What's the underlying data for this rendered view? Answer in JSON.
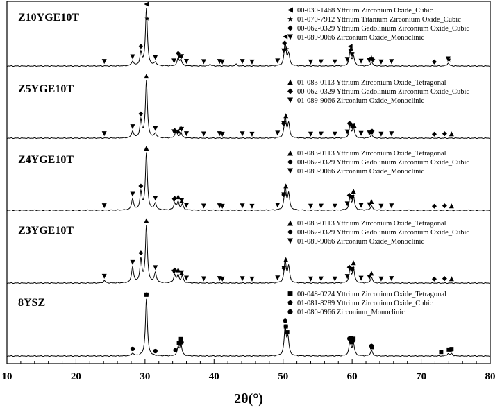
{
  "chart_data": {
    "type": "line",
    "xlabel": "2θ(°)",
    "xlim": [
      10,
      80
    ],
    "x_ticks": [
      "10",
      "20",
      "30",
      "40",
      "50",
      "60",
      "70",
      "80"
    ],
    "panels": [
      {
        "name": "Z10YGE10T",
        "legend": [
          {
            "marker": "triangle-left",
            "text": "00-030-1468 Yttrium Zirconium Oxide_Cubic"
          },
          {
            "marker": "star",
            "text": "01-070-7912 Yttrium Titanium Zirconium Oxide_Cubic"
          },
          {
            "marker": "diamond",
            "text": "00-062-0329 Yttrium Gadolinium Zirconium Oxide_Cubic"
          },
          {
            "marker": "triangle-down",
            "text": "01-089-9066 Zirconium Oxide_Monoclinic"
          }
        ],
        "peaks": [
          [
            28.2,
            0.08
          ],
          [
            29.4,
            0.22
          ],
          [
            30.2,
            1.0
          ],
          [
            31.5,
            0.06
          ],
          [
            34.8,
            0.13
          ],
          [
            35.2,
            0.1
          ],
          [
            39.4,
            0.03
          ],
          [
            43.2,
            0.03
          ],
          [
            50.3,
            0.42
          ],
          [
            50.8,
            0.2
          ],
          [
            59.7,
            0.25
          ],
          [
            60.2,
            0.16
          ],
          [
            62.8,
            0.07
          ],
          [
            73.9,
            0.05
          ]
        ],
        "markers": [
          {
            "m": "triangle-left",
            "x": [
              30.2,
              50.3,
              59.7
            ]
          },
          {
            "m": "star",
            "x": [
              30.3,
              35.0,
              50.5,
              60.0,
              62.8,
              74.0
            ]
          },
          {
            "m": "diamond",
            "x": [
              29.4,
              34.8,
              50.2,
              59.8,
              63.0,
              71.9
            ]
          },
          {
            "m": "triangle-down",
            "x": [
              24.1,
              28.2,
              31.5,
              34.2,
              35.3,
              36.0,
              38.5,
              40.8,
              41.2,
              44.1,
              45.5,
              49.2,
              50.1,
              54.0,
              55.5,
              57.5,
              59.3,
              60.0,
              61.3,
              62.5,
              64.2,
              65.7,
              73.9
            ]
          }
        ]
      },
      {
        "name": "Z5YGE10T",
        "legend": [
          {
            "marker": "triangle-up",
            "text": "01-083-0113 Yttrium Zirconium Oxide_Tetragonal"
          },
          {
            "marker": "diamond",
            "text": "00-062-0329 Yttrium Gadolinium Zirconium Oxide_Cubic"
          },
          {
            "marker": "triangle-down",
            "text": "01-089-9066 Zirconium Oxide_Monoclinic"
          }
        ],
        "peaks": [
          [
            28.2,
            0.12
          ],
          [
            29.4,
            0.3
          ],
          [
            30.2,
            1.0
          ],
          [
            31.5,
            0.08
          ],
          [
            34.5,
            0.14
          ],
          [
            35.2,
            0.1
          ],
          [
            50.3,
            0.38
          ],
          [
            50.8,
            0.25
          ],
          [
            59.7,
            0.22
          ],
          [
            60.2,
            0.18
          ],
          [
            62.8,
            0.06
          ]
        ],
        "markers": [
          {
            "m": "triangle-up",
            "x": [
              30.2,
              34.8,
              35.2,
              50.4,
              59.8,
              60.3,
              62.7,
              74.4
            ]
          },
          {
            "m": "diamond",
            "x": [
              29.4,
              34.3,
              50.1,
              59.6,
              62.9,
              71.9,
              73.4
            ]
          },
          {
            "m": "triangle-down",
            "x": [
              24.1,
              28.2,
              31.5,
              34.2,
              35.3,
              36.0,
              38.5,
              40.8,
              41.2,
              44.1,
              45.5,
              49.2,
              50.1,
              54.0,
              55.5,
              57.5,
              59.3,
              60.0,
              61.3,
              62.5,
              64.2,
              65.7
            ]
          }
        ]
      },
      {
        "name": "Z4YGE10T",
        "legend": [
          {
            "marker": "triangle-up",
            "text": "01-083-0113 Yttrium Zirconium Oxide_Tetragonal"
          },
          {
            "marker": "diamond",
            "text": "00-062-0329 Yttrium Gadolinium Zirconium Oxide_Cubic"
          },
          {
            "marker": "triangle-down",
            "text": "01-089-9066 Zirconium Oxide_Monoclinic"
          }
        ],
        "peaks": [
          [
            28.2,
            0.2
          ],
          [
            29.4,
            0.3
          ],
          [
            30.2,
            1.0
          ],
          [
            31.5,
            0.12
          ],
          [
            34.3,
            0.12
          ],
          [
            34.8,
            0.14
          ],
          [
            35.4,
            0.1
          ],
          [
            50.3,
            0.42
          ],
          [
            50.8,
            0.28
          ],
          [
            59.7,
            0.22
          ],
          [
            60.2,
            0.24
          ],
          [
            62.8,
            0.08
          ]
        ],
        "markers": [
          {
            "m": "triangle-up",
            "x": [
              30.2,
              34.8,
              35.3,
              50.4,
              60.2,
              62.8,
              74.4
            ]
          },
          {
            "m": "diamond",
            "x": [
              29.4,
              34.3,
              50.1,
              59.6,
              60.0,
              71.9,
              73.4
            ]
          },
          {
            "m": "triangle-down",
            "x": [
              24.1,
              28.2,
              31.5,
              34.2,
              35.3,
              36.0,
              38.5,
              40.8,
              41.2,
              44.1,
              45.5,
              49.2,
              50.1,
              54.0,
              55.5,
              57.5,
              59.3,
              60.0,
              61.3,
              62.5,
              64.2,
              65.7
            ]
          }
        ]
      },
      {
        "name": "Z3YGE10T",
        "legend": [
          {
            "marker": "triangle-up",
            "text": "01-083-0113 Yttrium Zirconium Oxide_Tetragonal"
          },
          {
            "marker": "diamond",
            "text": "00-062-0329 Yttrium Gadolinium Zirconium Oxide_Cubic"
          },
          {
            "marker": "triangle-down",
            "text": "01-089-9066 Zirconium Oxide_Monoclinic"
          }
        ],
        "peaks": [
          [
            24.1,
            0.04
          ],
          [
            28.2,
            0.28
          ],
          [
            29.4,
            0.4
          ],
          [
            30.2,
            1.0
          ],
          [
            31.5,
            0.18
          ],
          [
            34.3,
            0.14
          ],
          [
            34.8,
            0.13
          ],
          [
            35.4,
            0.12
          ],
          [
            50.3,
            0.4
          ],
          [
            50.8,
            0.28
          ],
          [
            59.7,
            0.24
          ],
          [
            60.2,
            0.26
          ],
          [
            62.8,
            0.1
          ]
        ],
        "markers": [
          {
            "m": "triangle-up",
            "x": [
              30.2,
              34.8,
              35.3,
              50.4,
              60.2,
              62.8,
              74.4
            ]
          },
          {
            "m": "diamond",
            "x": [
              29.4,
              34.3,
              50.1,
              59.6,
              60.0,
              71.9,
              73.4
            ]
          },
          {
            "m": "triangle-down",
            "x": [
              24.1,
              28.2,
              31.5,
              34.2,
              35.3,
              36.0,
              38.5,
              40.8,
              41.2,
              44.1,
              45.5,
              49.2,
              50.1,
              54.0,
              55.5,
              57.5,
              59.3,
              60.0,
              61.3,
              62.5,
              64.2,
              65.7
            ]
          }
        ]
      },
      {
        "name": "8YSZ",
        "legend": [
          {
            "marker": "square",
            "text": "00-048-0224 Yttrium Zirconium Oxide_Tetragonal"
          },
          {
            "marker": "pentagon",
            "text": "01-081-8289 Yttrium Zirconium Oxide_Cubic"
          },
          {
            "marker": "circle",
            "text": "01-080-0966 Zirconium_Monoclinic"
          }
        ],
        "peaks": [
          [
            28.2,
            0.05
          ],
          [
            30.2,
            1.0
          ],
          [
            34.8,
            0.14
          ],
          [
            35.2,
            0.2
          ],
          [
            50.3,
            0.5
          ],
          [
            50.7,
            0.3
          ],
          [
            59.7,
            0.28
          ],
          [
            60.2,
            0.2
          ],
          [
            62.8,
            0.1
          ],
          [
            73.9,
            0.04
          ],
          [
            74.4,
            0.04
          ]
        ],
        "markers": [
          {
            "m": "square",
            "x": [
              30.2,
              34.9,
              35.2,
              50.4,
              50.6,
              59.8,
              60.2,
              62.9,
              72.9,
              74.0,
              74.4
            ]
          },
          {
            "m": "pentagon",
            "x": [
              30.2,
              35.0,
              50.3,
              59.9,
              62.8,
              74.3
            ]
          },
          {
            "m": "circle",
            "x": [
              28.2,
              31.5,
              34.4,
              35.0,
              35.3,
              50.4,
              59.6,
              60.1,
              62.8
            ]
          }
        ]
      }
    ]
  }
}
